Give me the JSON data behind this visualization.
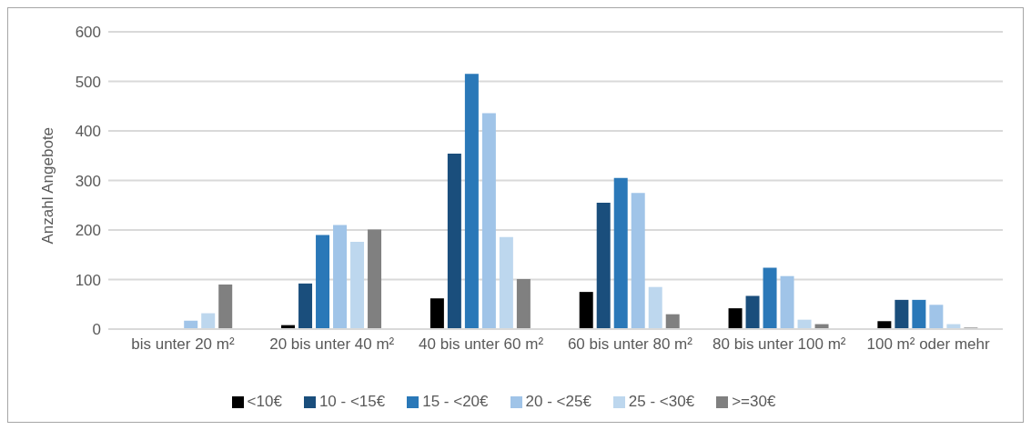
{
  "chart_data": {
    "type": "bar",
    "ylabel": "Anzahl Angebote",
    "categories": [
      "bis unter 20 m²",
      "20 bis unter 40 m²",
      "40 bis unter 60 m²",
      "60 bis unter 80 m²",
      "80 bis unter 100 m²",
      "100 m² oder mehr"
    ],
    "series": [
      {
        "name": "<10€",
        "color": "#000000",
        "values": [
          0,
          8,
          62,
          75,
          42,
          16
        ]
      },
      {
        "name": "10 - <15€",
        "color": "#1a4e7c",
        "values": [
          0,
          92,
          354,
          255,
          67,
          59
        ]
      },
      {
        "name": "15 - <20€",
        "color": "#2a78b8",
        "values": [
          0,
          190,
          515,
          305,
          124,
          59
        ]
      },
      {
        "name": "20 - <25€",
        "color": "#a0c4e8",
        "values": [
          17,
          210,
          436,
          275,
          107,
          49
        ]
      },
      {
        "name": "25 - <30€",
        "color": "#bdd7ee",
        "values": [
          32,
          176,
          186,
          85,
          19,
          10
        ]
      },
      {
        "name": ">=30€",
        "color": "#808080",
        "values": [
          90,
          201,
          101,
          30,
          10,
          3
        ]
      }
    ],
    "ylim": [
      0,
      600
    ],
    "yticks": [
      0,
      100,
      200,
      300,
      400,
      500,
      600
    ],
    "grid": "y",
    "legend": "bottom"
  }
}
